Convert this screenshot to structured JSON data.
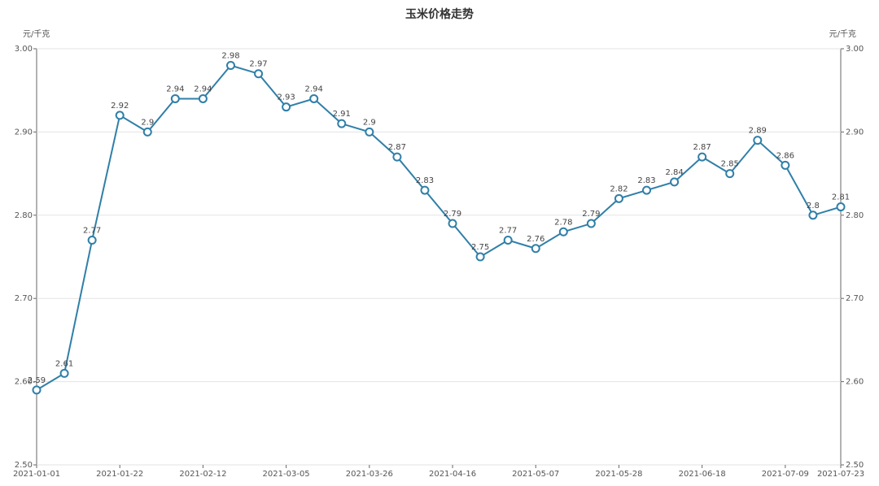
{
  "chart_data": {
    "type": "line",
    "title": "玉米价格走势",
    "y_label": "元/千克",
    "y2_label": "元/千克",
    "categories": [
      "2021-01-01",
      null,
      null,
      "2021-01-22",
      null,
      null,
      "2021-02-12",
      null,
      null,
      "2021-03-05",
      null,
      null,
      "2021-03-26",
      null,
      null,
      "2021-04-16",
      null,
      null,
      "2021-05-07",
      null,
      null,
      "2021-05-28",
      null,
      null,
      "2021-06-18",
      null,
      null,
      "2021-07-09",
      null,
      "2021-07-23"
    ],
    "series": [
      {
        "name": "玉米价格",
        "color": "#2f7fa8",
        "values": [
          2.59,
          2.61,
          2.77,
          2.92,
          2.9,
          2.94,
          2.94,
          2.98,
          2.97,
          2.93,
          2.94,
          2.91,
          2.9,
          2.87,
          2.83,
          2.79,
          2.75,
          2.77,
          2.76,
          2.78,
          2.79,
          2.82,
          2.83,
          2.84,
          2.87,
          2.85,
          2.89,
          2.86,
          2.8,
          2.81
        ]
      }
    ],
    "ylim": [
      2.5,
      3.0
    ],
    "yticks": [
      {
        "value": 2.5,
        "label": "2.50"
      },
      {
        "value": 2.6,
        "label": "2.60"
      },
      {
        "value": 2.7,
        "label": "2.70"
      },
      {
        "value": 2.8,
        "label": "2.80"
      },
      {
        "value": 2.9,
        "label": "2.90"
      },
      {
        "value": 3.0,
        "label": "3.00"
      }
    ],
    "y2lim": [
      2.5,
      3.0
    ],
    "y2ticks": [
      {
        "value": 2.5,
        "label": "2.50"
      },
      {
        "value": 2.6,
        "label": "2.60"
      },
      {
        "value": 2.7,
        "label": "2.70"
      },
      {
        "value": 2.8,
        "label": "2.80"
      },
      {
        "value": 2.9,
        "label": "2.90"
      },
      {
        "value": 3.0,
        "label": "3.00"
      }
    ],
    "grid": true
  }
}
